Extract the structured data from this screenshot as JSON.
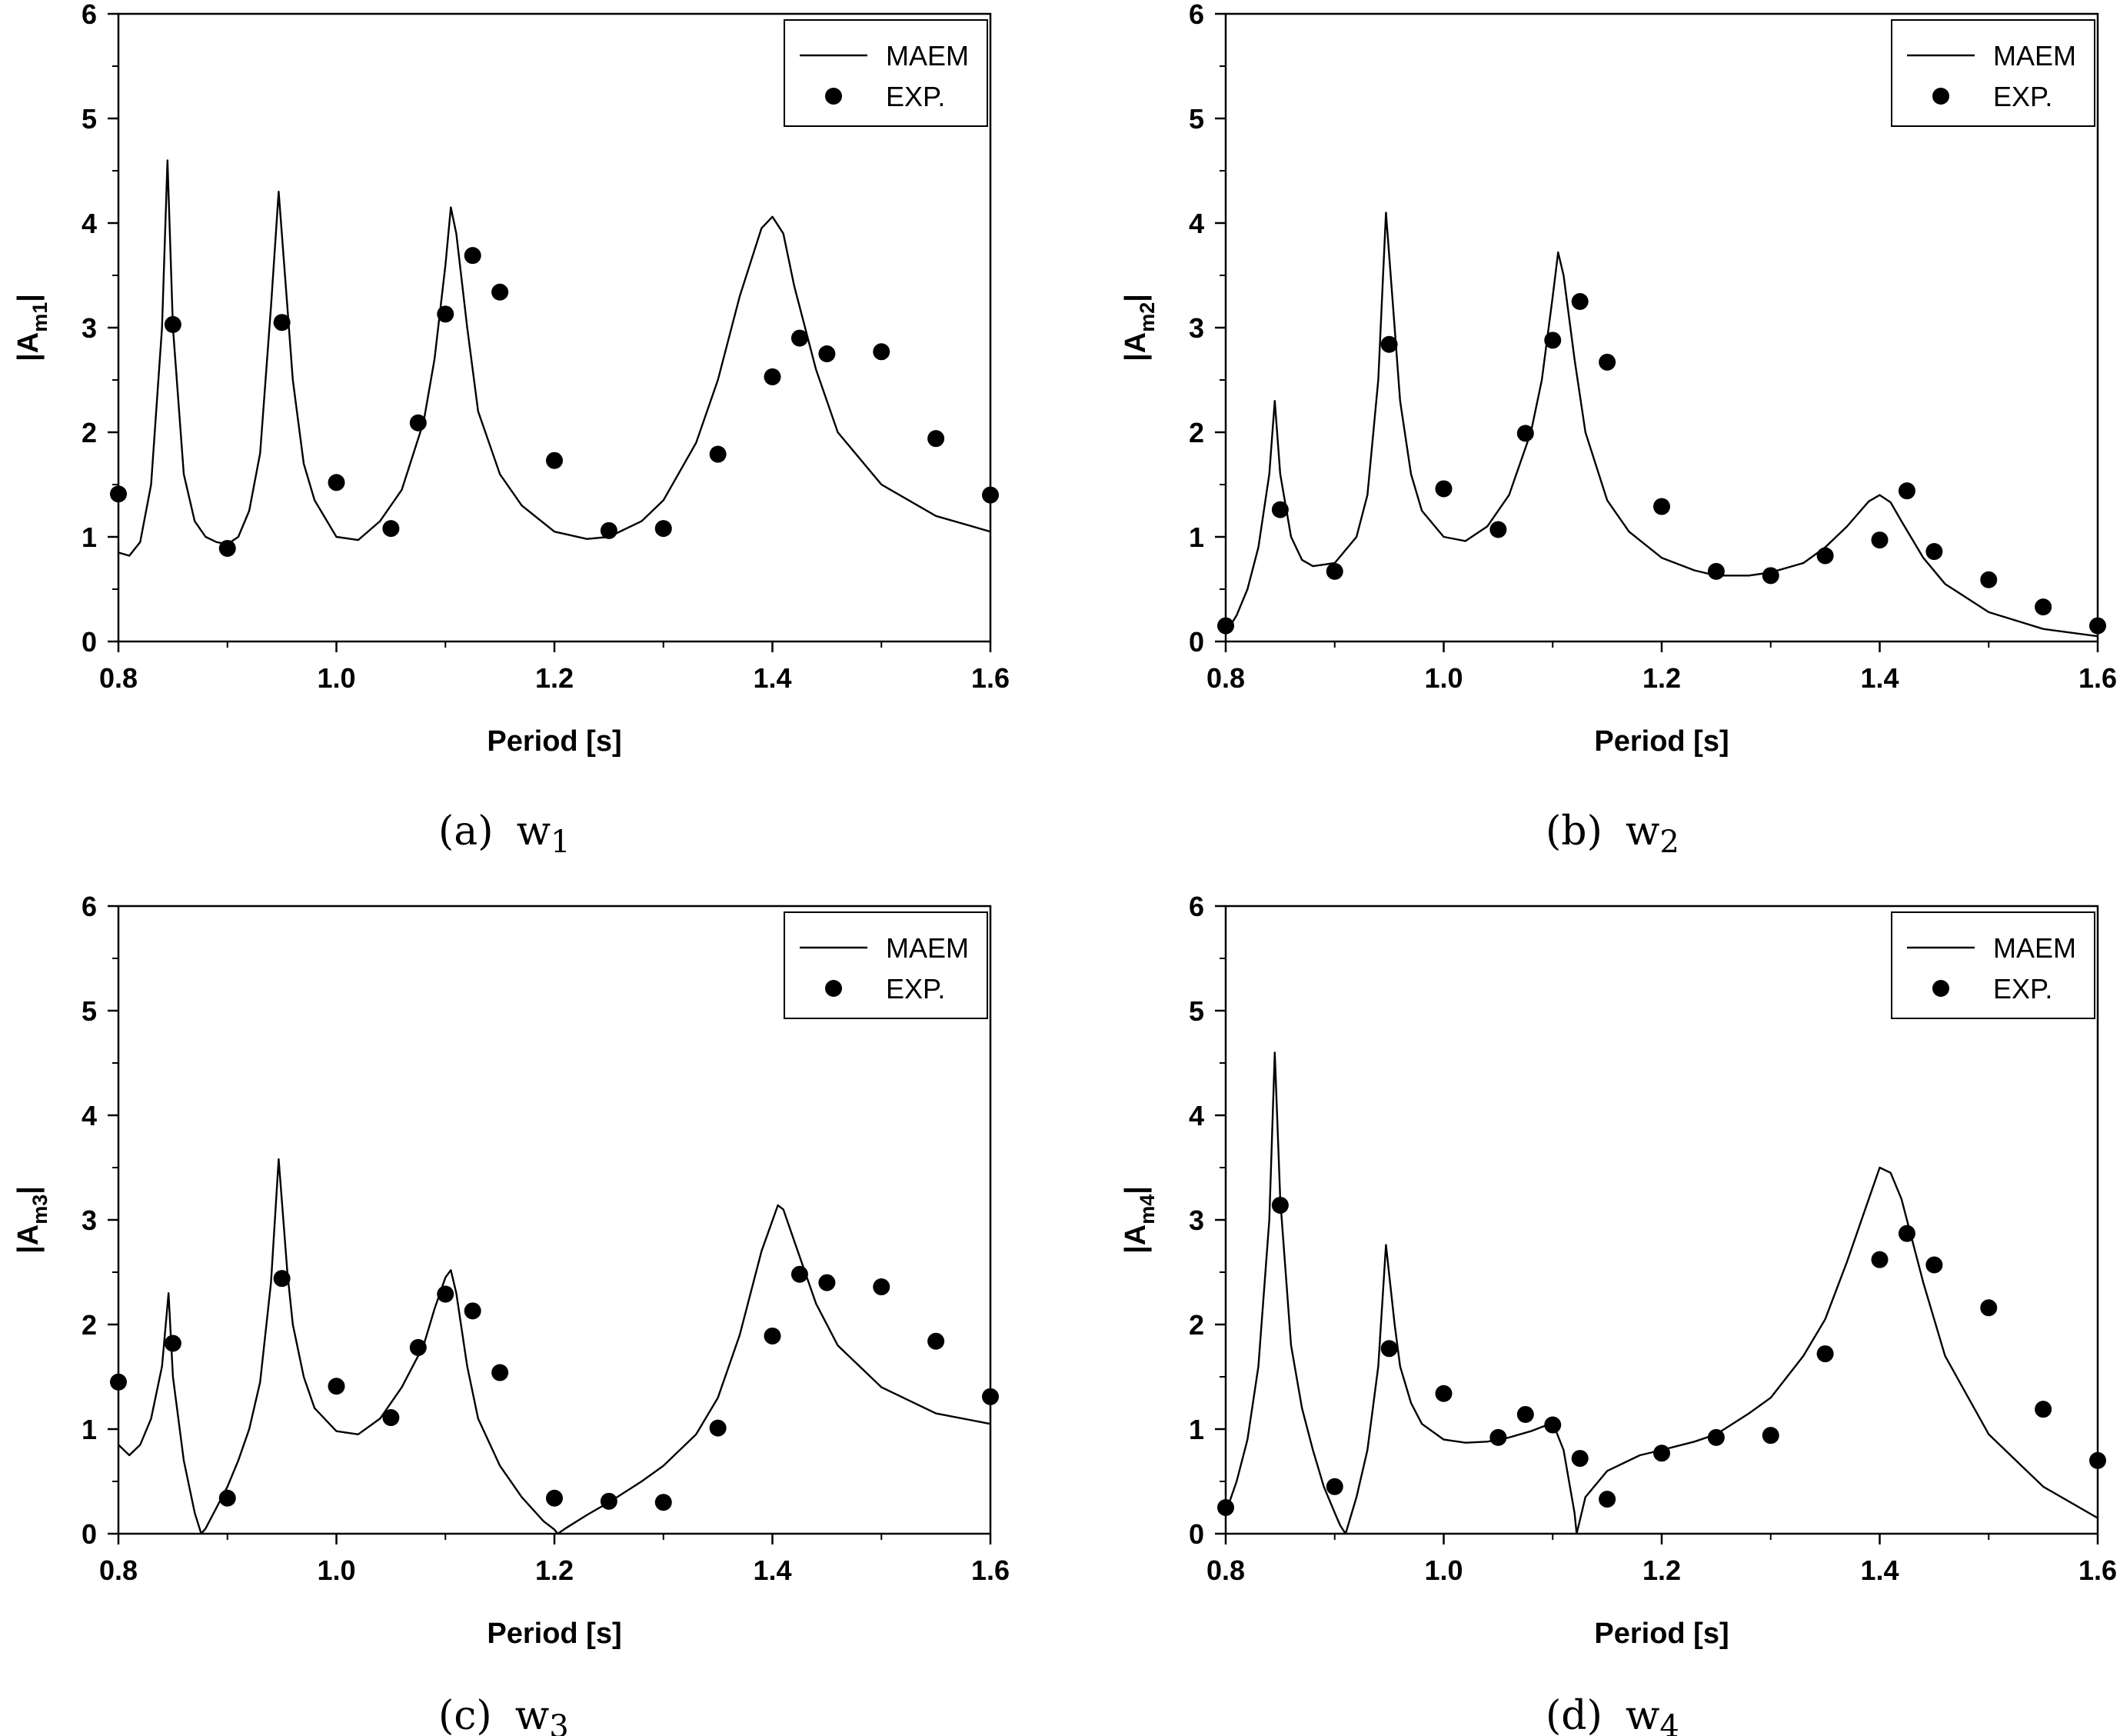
{
  "chart_data": [
    {
      "type": "scatter+line",
      "panel": "a",
      "caption_prefix": "(a)",
      "caption_var": "w",
      "caption_sub": "1",
      "xlabel": "Period [s]",
      "ylabel_main": "|A",
      "ylabel_sub": "m1",
      "ylabel_end": "|",
      "xlim": [
        0.8,
        1.6
      ],
      "ylim": [
        0,
        6
      ],
      "xticks": [
        "0.8",
        "1.0",
        "1.2",
        "1.4",
        "1.6"
      ],
      "yticks": [
        "0",
        "1",
        "2",
        "3",
        "4",
        "5",
        "6"
      ],
      "legend": {
        "position": "top-right",
        "line_label": "MAEM",
        "marker_label": "EXP."
      },
      "series": [
        {
          "name": "MAEM",
          "style": "line",
          "x": [
            0.8,
            0.81,
            0.82,
            0.83,
            0.84,
            0.845,
            0.85,
            0.86,
            0.87,
            0.88,
            0.89,
            0.9,
            0.91,
            0.92,
            0.93,
            0.94,
            0.947,
            0.955,
            0.96,
            0.97,
            0.98,
            1.0,
            1.02,
            1.04,
            1.06,
            1.08,
            1.09,
            1.1,
            1.105,
            1.11,
            1.12,
            1.13,
            1.15,
            1.17,
            1.2,
            1.23,
            1.25,
            1.28,
            1.3,
            1.33,
            1.35,
            1.37,
            1.39,
            1.4,
            1.41,
            1.42,
            1.44,
            1.46,
            1.5,
            1.55,
            1.6
          ],
          "y": [
            0.85,
            0.82,
            0.95,
            1.5,
            3.0,
            4.6,
            3.0,
            1.6,
            1.15,
            1.0,
            0.95,
            0.93,
            1.0,
            1.25,
            1.8,
            3.2,
            4.3,
            3.2,
            2.5,
            1.7,
            1.35,
            1.0,
            0.97,
            1.15,
            1.45,
            2.1,
            2.7,
            3.6,
            4.15,
            3.9,
            3.0,
            2.2,
            1.6,
            1.3,
            1.05,
            0.98,
            1.0,
            1.15,
            1.35,
            1.9,
            2.5,
            3.3,
            3.95,
            4.06,
            3.9,
            3.4,
            2.6,
            2.0,
            1.5,
            1.2,
            1.05
          ]
        },
        {
          "name": "EXP.",
          "style": "marker",
          "x": [
            0.8,
            0.85,
            0.9,
            0.95,
            1.0,
            1.05,
            1.075,
            1.1,
            1.125,
            1.15,
            1.2,
            1.25,
            1.3,
            1.35,
            1.4,
            1.425,
            1.45,
            1.5,
            1.55,
            1.6
          ],
          "y": [
            1.41,
            3.03,
            0.89,
            3.05,
            1.52,
            1.08,
            2.09,
            3.13,
            3.69,
            3.34,
            1.73,
            1.06,
            1.08,
            1.79,
            2.53,
            2.9,
            2.75,
            2.77,
            1.94,
            1.4
          ]
        }
      ]
    },
    {
      "type": "scatter+line",
      "panel": "b",
      "caption_prefix": "(b)",
      "caption_var": "w",
      "caption_sub": "2",
      "xlabel": "Period [s]",
      "ylabel_main": "|A",
      "ylabel_sub": "m2",
      "ylabel_end": "|",
      "xlim": [
        0.8,
        1.6
      ],
      "ylim": [
        0,
        6
      ],
      "xticks": [
        "0.8",
        "1.0",
        "1.2",
        "1.4",
        "1.6"
      ],
      "yticks": [
        "0",
        "1",
        "2",
        "3",
        "4",
        "5",
        "6"
      ],
      "legend": {
        "position": "top-right",
        "line_label": "MAEM",
        "marker_label": "EXP."
      },
      "series": [
        {
          "name": "MAEM",
          "style": "line",
          "x": [
            0.8,
            0.81,
            0.82,
            0.83,
            0.84,
            0.845,
            0.85,
            0.86,
            0.87,
            0.88,
            0.9,
            0.92,
            0.93,
            0.94,
            0.947,
            0.955,
            0.96,
            0.97,
            0.98,
            1.0,
            1.02,
            1.04,
            1.06,
            1.08,
            1.09,
            1.1,
            1.105,
            1.11,
            1.12,
            1.13,
            1.15,
            1.17,
            1.2,
            1.23,
            1.25,
            1.28,
            1.3,
            1.33,
            1.35,
            1.37,
            1.39,
            1.4,
            1.41,
            1.42,
            1.44,
            1.46,
            1.5,
            1.55,
            1.6
          ],
          "y": [
            0.08,
            0.25,
            0.5,
            0.9,
            1.6,
            2.3,
            1.6,
            1.0,
            0.78,
            0.72,
            0.75,
            1.0,
            1.4,
            2.5,
            4.1,
            3.0,
            2.3,
            1.6,
            1.25,
            1.0,
            0.96,
            1.1,
            1.4,
            2.0,
            2.5,
            3.3,
            3.72,
            3.5,
            2.7,
            2.0,
            1.35,
            1.05,
            0.8,
            0.68,
            0.63,
            0.63,
            0.66,
            0.75,
            0.9,
            1.1,
            1.34,
            1.4,
            1.33,
            1.15,
            0.8,
            0.55,
            0.28,
            0.12,
            0.05
          ]
        },
        {
          "name": "EXP.",
          "style": "marker",
          "x": [
            0.8,
            0.85,
            0.9,
            0.95,
            1.0,
            1.05,
            1.075,
            1.1,
            1.125,
            1.15,
            1.2,
            1.25,
            1.3,
            1.35,
            1.4,
            1.425,
            1.45,
            1.5,
            1.55,
            1.6
          ],
          "y": [
            0.15,
            1.26,
            0.67,
            2.84,
            1.46,
            1.07,
            1.99,
            2.88,
            3.25,
            2.67,
            1.29,
            0.67,
            0.63,
            0.82,
            0.97,
            1.44,
            0.86,
            0.59,
            0.33,
            0.15
          ]
        }
      ]
    },
    {
      "type": "scatter+line",
      "panel": "c",
      "caption_prefix": "(c)",
      "caption_var": "w",
      "caption_sub": "3",
      "xlabel": "Period [s]",
      "ylabel_main": "|A",
      "ylabel_sub": "m3",
      "ylabel_end": "|",
      "xlim": [
        0.8,
        1.6
      ],
      "ylim": [
        0,
        6
      ],
      "xticks": [
        "0.8",
        "1.0",
        "1.2",
        "1.4",
        "1.6"
      ],
      "yticks": [
        "0",
        "1",
        "2",
        "3",
        "4",
        "5",
        "6"
      ],
      "legend": {
        "position": "top-right",
        "line_label": "MAEM",
        "marker_label": "EXP."
      },
      "series": [
        {
          "name": "MAEM",
          "style": "line",
          "x": [
            0.8,
            0.81,
            0.82,
            0.83,
            0.84,
            0.846,
            0.85,
            0.86,
            0.87,
            0.876,
            0.88,
            0.89,
            0.9,
            0.91,
            0.92,
            0.93,
            0.94,
            0.947,
            0.955,
            0.96,
            0.97,
            0.98,
            1.0,
            1.02,
            1.04,
            1.06,
            1.08,
            1.09,
            1.1,
            1.105,
            1.11,
            1.12,
            1.13,
            1.15,
            1.17,
            1.19,
            1.2,
            1.203,
            1.21,
            1.23,
            1.25,
            1.28,
            1.3,
            1.33,
            1.35,
            1.37,
            1.39,
            1.405,
            1.41,
            1.42,
            1.44,
            1.46,
            1.5,
            1.55,
            1.6
          ],
          "y": [
            0.85,
            0.75,
            0.85,
            1.1,
            1.6,
            2.3,
            1.5,
            0.7,
            0.2,
            0.0,
            0.05,
            0.25,
            0.45,
            0.7,
            1.0,
            1.45,
            2.4,
            3.58,
            2.5,
            2.0,
            1.5,
            1.2,
            0.98,
            0.95,
            1.1,
            1.4,
            1.8,
            2.15,
            2.45,
            2.52,
            2.3,
            1.6,
            1.1,
            0.65,
            0.35,
            0.12,
            0.04,
            0.0,
            0.05,
            0.18,
            0.3,
            0.5,
            0.65,
            0.95,
            1.3,
            1.9,
            2.7,
            3.14,
            3.1,
            2.8,
            2.2,
            1.8,
            1.4,
            1.15,
            1.05
          ]
        },
        {
          "name": "EXP.",
          "style": "marker",
          "x": [
            0.8,
            0.85,
            0.9,
            0.95,
            1.0,
            1.05,
            1.075,
            1.1,
            1.125,
            1.15,
            1.2,
            1.25,
            1.3,
            1.35,
            1.4,
            1.425,
            1.45,
            1.5,
            1.55,
            1.6
          ],
          "y": [
            1.45,
            1.82,
            0.34,
            2.44,
            1.41,
            1.11,
            1.78,
            2.29,
            2.13,
            1.54,
            0.34,
            0.31,
            0.3,
            1.01,
            1.89,
            2.48,
            2.4,
            2.36,
            1.84,
            1.31
          ]
        }
      ]
    },
    {
      "type": "scatter+line",
      "panel": "d",
      "caption_prefix": "(d)",
      "caption_var": "w",
      "caption_sub": "4",
      "xlabel": "Period [s]",
      "ylabel_main": "|A",
      "ylabel_sub": "m4",
      "ylabel_end": "|",
      "xlim": [
        0.8,
        1.6
      ],
      "ylim": [
        0,
        6
      ],
      "xticks": [
        "0.8",
        "1.0",
        "1.2",
        "1.4",
        "1.6"
      ],
      "yticks": [
        "0",
        "1",
        "2",
        "3",
        "4",
        "5",
        "6"
      ],
      "legend": {
        "position": "top-right",
        "line_label": "MAEM",
        "marker_label": "EXP."
      },
      "series": [
        {
          "name": "MAEM",
          "style": "line",
          "x": [
            0.8,
            0.81,
            0.82,
            0.83,
            0.84,
            0.845,
            0.85,
            0.86,
            0.87,
            0.88,
            0.89,
            0.9,
            0.905,
            0.91,
            0.92,
            0.93,
            0.94,
            0.947,
            0.955,
            0.96,
            0.97,
            0.98,
            1.0,
            1.02,
            1.04,
            1.06,
            1.08,
            1.09,
            1.1,
            1.11,
            1.12,
            1.122,
            1.13,
            1.15,
            1.18,
            1.2,
            1.23,
            1.25,
            1.28,
            1.3,
            1.33,
            1.35,
            1.37,
            1.39,
            1.4,
            1.41,
            1.42,
            1.44,
            1.46,
            1.5,
            1.55,
            1.6
          ],
          "y": [
            0.2,
            0.5,
            0.9,
            1.6,
            3.0,
            4.6,
            3.2,
            1.8,
            1.2,
            0.8,
            0.45,
            0.2,
            0.08,
            0.0,
            0.35,
            0.8,
            1.6,
            2.76,
            2.0,
            1.6,
            1.25,
            1.05,
            0.9,
            0.87,
            0.88,
            0.92,
            0.98,
            1.02,
            1.06,
            0.8,
            0.2,
            0.0,
            0.35,
            0.6,
            0.75,
            0.8,
            0.88,
            0.95,
            1.15,
            1.3,
            1.7,
            2.05,
            2.6,
            3.2,
            3.5,
            3.45,
            3.2,
            2.4,
            1.7,
            0.95,
            0.45,
            0.15
          ]
        },
        {
          "name": "EXP.",
          "style": "marker",
          "x": [
            0.8,
            0.85,
            0.9,
            0.95,
            1.0,
            1.05,
            1.075,
            1.1,
            1.125,
            1.15,
            1.2,
            1.25,
            1.3,
            1.35,
            1.4,
            1.425,
            1.45,
            1.5,
            1.55,
            1.6
          ],
          "y": [
            0.25,
            3.14,
            0.45,
            1.77,
            1.34,
            0.92,
            1.14,
            1.04,
            0.72,
            0.33,
            0.77,
            0.92,
            0.94,
            1.72,
            2.62,
            2.87,
            2.57,
            2.16,
            1.19,
            0.7
          ]
        }
      ]
    }
  ]
}
